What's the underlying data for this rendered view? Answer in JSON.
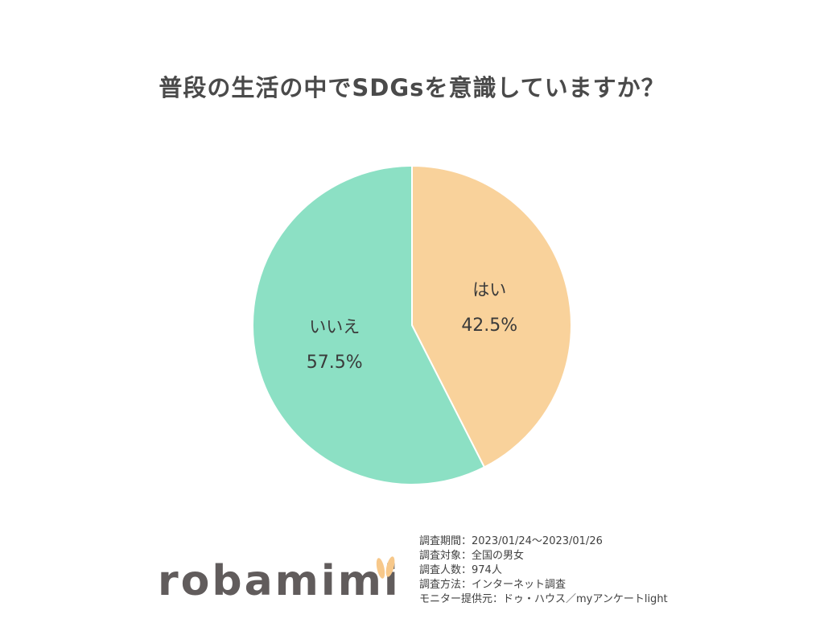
{
  "title": "普段の生活の中でSDGsを意識していますか？",
  "chart_data": {
    "type": "pie",
    "title": "普段の生活の中でSDGsを意識していますか？",
    "slices": [
      {
        "label": "はい",
        "value": 42.5,
        "display": "42.5%",
        "color": "#f9d29b"
      },
      {
        "label": "いいえ",
        "value": 57.5,
        "display": "57.5%",
        "color": "#8ce0c4"
      }
    ],
    "start": "12 o'clock",
    "direction": "clockwise"
  },
  "survey_info": {
    "lines": [
      "調査期間：2023/01/24～2023/01/26",
      "調査対象：全国の男女",
      "調査人数：974人",
      "調査方法：インターネット調査",
      "モニター提供元：ドゥ・ハウス／myアンケートlight"
    ]
  },
  "logo": {
    "text": "robamimi",
    "ears_color": "#f7c88a"
  }
}
